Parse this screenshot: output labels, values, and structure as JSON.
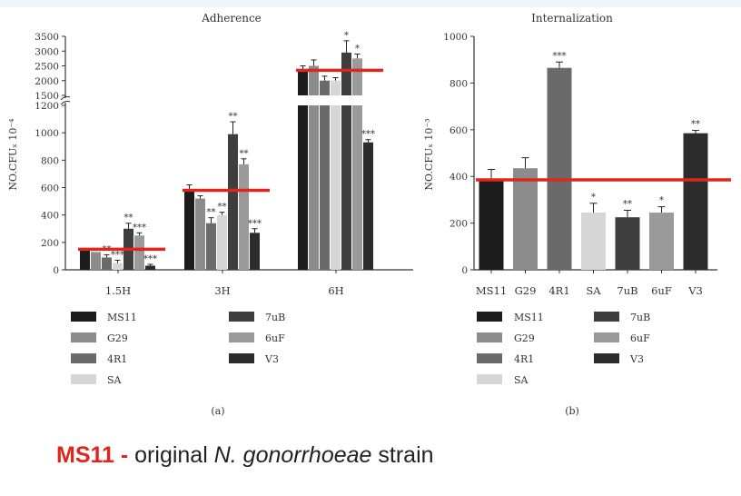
{
  "chart_data": [
    {
      "type": "bar",
      "title": "Adherence",
      "ylabel": "NO.CFU x 10^-4",
      "categories": [
        "1.5H",
        "3H",
        "6H"
      ],
      "ylim": [
        0,
        3500
      ],
      "axis_break": {
        "lower": [
          0,
          1200
        ],
        "upper": [
          1500,
          3500
        ]
      },
      "yticks": [
        "0",
        "200",
        "400",
        "600",
        "800",
        "1000",
        "1200",
        "1500",
        "2000",
        "2500",
        "3000",
        "3500"
      ],
      "series": [
        {
          "name": "MS11",
          "values": [
            150,
            580,
            2350
          ],
          "errors": [
            0,
            40,
            150
          ],
          "sig": [
            "",
            "",
            ""
          ]
        },
        {
          "name": "G29",
          "values": [
            130,
            520,
            2500
          ],
          "errors": [
            0,
            20,
            200
          ],
          "sig": [
            "",
            "",
            ""
          ]
        },
        {
          "name": "4R1",
          "values": [
            90,
            340,
            2000
          ],
          "errors": [
            20,
            40,
            150
          ],
          "sig": [
            "**",
            "**",
            ""
          ]
        },
        {
          "name": "SA",
          "values": [
            50,
            400,
            2000
          ],
          "errors": [
            20,
            20,
            100
          ],
          "sig": [
            "***",
            "**",
            ""
          ]
        },
        {
          "name": "7uB",
          "values": [
            300,
            990,
            2950
          ],
          "errors": [
            40,
            90,
            400
          ],
          "sig": [
            "**",
            "**",
            "*"
          ]
        },
        {
          "name": "6uF",
          "values": [
            250,
            770,
            2750
          ],
          "errors": [
            20,
            40,
            150
          ],
          "sig": [
            "***",
            "**",
            "*"
          ]
        },
        {
          "name": "V3",
          "values": [
            30,
            270,
            930
          ],
          "errors": [
            10,
            30,
            20
          ],
          "sig": [
            "***",
            "***",
            "***"
          ]
        }
      ],
      "reference_lines": [
        {
          "category": "1.5H",
          "value": 150
        },
        {
          "category": "3H",
          "value": 580
        },
        {
          "category": "6H",
          "value": 2350
        }
      ],
      "panel_label": "(a)",
      "legend_placement": "bottom"
    },
    {
      "type": "bar",
      "title": "Internalization",
      "ylabel": "NO.CFU x 10^-3",
      "categories": [
        "MS11",
        "G29",
        "4R1",
        "SA",
        "7uB",
        "6uF",
        "V3"
      ],
      "values": [
        390,
        435,
        865,
        245,
        225,
        245,
        585
      ],
      "errors": [
        40,
        45,
        25,
        40,
        30,
        25,
        12
      ],
      "sig": [
        "",
        "",
        "***",
        "*",
        "**",
        "*",
        "**"
      ],
      "ylim": [
        0,
        1000
      ],
      "yticks": [
        "0",
        "200",
        "400",
        "600",
        "800",
        "1000"
      ],
      "reference_line": 385,
      "panel_label": "(b)",
      "legend_placement": "bottom"
    }
  ],
  "colors": {
    "MS11": "#1c1c1c",
    "G29": "#8c8c8c",
    "4R1": "#6a6a6a",
    "SA": "#d6d6d6",
    "7uB": "#3e3e3e",
    "6uF": "#9a9a9a",
    "V3": "#2c2c2c",
    "ref_line": "#e0261c",
    "axis": "#333333"
  },
  "legend": {
    "left": [
      "MS11",
      "G29",
      "4R1",
      "SA"
    ],
    "right": [
      "7uB",
      "6uF",
      "V3"
    ]
  },
  "caption": {
    "strain": "MS11",
    "dash": " - ",
    "text1": "original ",
    "species": "N. gonorrhoeae",
    "text2": " strain"
  }
}
